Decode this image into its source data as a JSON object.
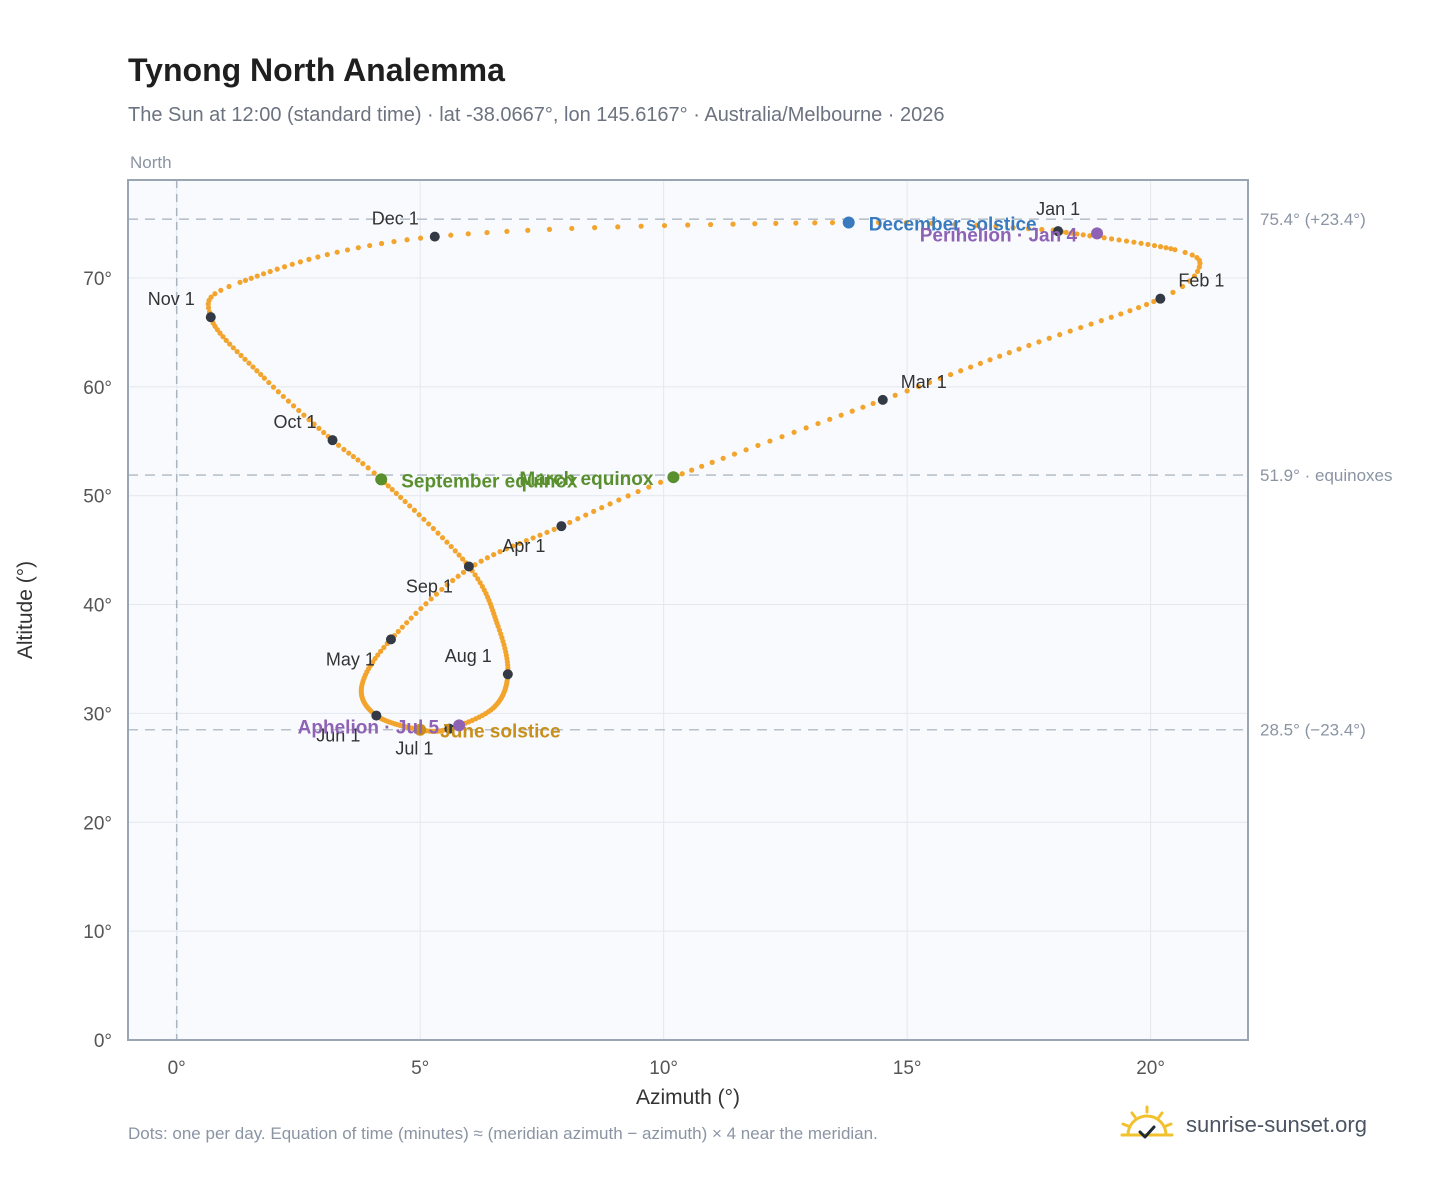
{
  "page": {
    "title": "Tynong North Analemma",
    "subtitle": "The Sun at 12:00 (standard time) · lat -38.0667°, lon 145.6167° · Australia/Melbourne · 2026",
    "footnote": "Dots: one per day. Equation of time (minutes) ≈ (meridian azimuth − azimuth) × 4 near the meridian.",
    "brand": "sunrise-sunset.org"
  },
  "chart_data": {
    "type": "scatter",
    "xlabel": "Azimuth (°)",
    "ylabel": "Altitude (°)",
    "xlim": [
      -1,
      22
    ],
    "ylim": [
      0,
      79
    ],
    "x_ticks": [
      0,
      5,
      10,
      15,
      20
    ],
    "x_tick_labels": [
      "0°",
      "5°",
      "10°",
      "15°",
      "20°"
    ],
    "y_ticks": [
      0,
      10,
      20,
      30,
      40,
      50,
      60,
      70
    ],
    "y_tick_labels": [
      "0°",
      "10°",
      "20°",
      "30°",
      "40°",
      "50°",
      "60°",
      "70°"
    ],
    "grid": true,
    "north_label": "North",
    "north_azimuth": 0,
    "reference_lines": [
      {
        "y": 75.4,
        "label": "75.4° (+23.4°)"
      },
      {
        "y": 51.9,
        "label": "51.9° · equinoxes"
      },
      {
        "y": 28.5,
        "label": "28.5° (−23.4°)"
      }
    ],
    "analemma_key_points": [
      {
        "date": "Jan 1",
        "az": 18.1,
        "alt": 74.3
      },
      {
        "date": "Jan 20",
        "az": 20.5,
        "alt": 72.6
      },
      {
        "date": "Jan 26",
        "az": 21.0,
        "alt": 71.0
      },
      {
        "date": "Feb 1",
        "az": 20.2,
        "alt": 68.1
      },
      {
        "date": "Feb 15",
        "az": 17.5,
        "alt": 63.8
      },
      {
        "date": "Mar 1",
        "az": 14.5,
        "alt": 58.8
      },
      {
        "date": "Mar 20",
        "az": 10.2,
        "alt": 51.7
      },
      {
        "date": "Apr 1",
        "az": 7.9,
        "alt": 47.2
      },
      {
        "date": "Apr 15",
        "az": 6.0,
        "alt": 43.3
      },
      {
        "date": "May 1",
        "az": 4.4,
        "alt": 36.8
      },
      {
        "date": "May 15",
        "az": 3.8,
        "alt": 32.5
      },
      {
        "date": "Jun 1",
        "az": 4.1,
        "alt": 29.8
      },
      {
        "date": "Jun 21",
        "az": 5.0,
        "alt": 28.5
      },
      {
        "date": "Jul 1",
        "az": 5.6,
        "alt": 28.6
      },
      {
        "date": "Jul 15",
        "az": 6.5,
        "alt": 30.5
      },
      {
        "date": "Aug 1",
        "az": 6.8,
        "alt": 33.6
      },
      {
        "date": "Aug 15",
        "az": 6.6,
        "alt": 38.0
      },
      {
        "date": "Sep 1",
        "az": 6.0,
        "alt": 43.5
      },
      {
        "date": "Sep 22",
        "az": 4.2,
        "alt": 51.5
      },
      {
        "date": "Oct 1",
        "az": 3.2,
        "alt": 55.1
      },
      {
        "date": "Oct 15",
        "az": 1.8,
        "alt": 60.8
      },
      {
        "date": "Nov 1",
        "az": 0.7,
        "alt": 66.4
      },
      {
        "date": "Nov 10",
        "az": 1.3,
        "alt": 69.6
      },
      {
        "date": "Dec 1",
        "az": 5.3,
        "alt": 73.8
      },
      {
        "date": "Dec 21",
        "az": 13.8,
        "alt": 75.1
      },
      {
        "date": "Dec 31",
        "az": 18.0,
        "alt": 74.4
      }
    ],
    "month_markers": [
      {
        "label": "Jan 1",
        "az": 18.1,
        "alt": 74.3,
        "pos": "above"
      },
      {
        "label": "Feb 1",
        "az": 20.2,
        "alt": 68.1,
        "pos": "right"
      },
      {
        "label": "Mar 1",
        "az": 14.5,
        "alt": 58.8,
        "pos": "above-right"
      },
      {
        "label": "Apr 1",
        "az": 7.9,
        "alt": 47.2,
        "pos": "below-left"
      },
      {
        "label": "May 1",
        "az": 4.4,
        "alt": 36.8,
        "pos": "below-left"
      },
      {
        "label": "Jun 1",
        "az": 4.1,
        "alt": 29.8,
        "pos": "below-left"
      },
      {
        "label": "Jul 1",
        "az": 5.6,
        "alt": 28.6,
        "pos": "below-left"
      },
      {
        "label": "Aug 1",
        "az": 6.8,
        "alt": 33.6,
        "pos": "above-left"
      },
      {
        "label": "Sep 1",
        "az": 6.0,
        "alt": 43.5,
        "pos": "below-left"
      },
      {
        "label": "Oct 1",
        "az": 3.2,
        "alt": 55.1,
        "pos": "above-left"
      },
      {
        "label": "Nov 1",
        "az": 0.7,
        "alt": 66.4,
        "pos": "above-left"
      },
      {
        "label": "Dec 1",
        "az": 5.3,
        "alt": 73.8,
        "pos": "above-left"
      }
    ],
    "events": [
      {
        "label": "December solstice",
        "az": 13.8,
        "alt": 75.1,
        "color": "#3a7bbf",
        "pos": "right"
      },
      {
        "label": "Perihelion · Jan 4",
        "az": 18.9,
        "alt": 74.1,
        "color": "#8e62b5",
        "pos": "left"
      },
      {
        "label": "March equinox",
        "az": 10.2,
        "alt": 51.7,
        "color": "#5a8f2e",
        "pos": "left"
      },
      {
        "label": "September equinox",
        "az": 4.2,
        "alt": 51.5,
        "color": "#5a8f2e",
        "pos": "right"
      },
      {
        "label": "June solstice",
        "az": 5.0,
        "alt": 28.5,
        "color": "#c88f1a",
        "pos": "right"
      },
      {
        "label": "Aphelion · Jul 5",
        "az": 5.8,
        "alt": 28.9,
        "color": "#8e62b5",
        "pos": "left"
      }
    ],
    "colors": {
      "path": "#f2a42c",
      "month_marker": "#333a45",
      "plot_background": "#f8fafd",
      "grid": "#e3e8ef",
      "frame": "#9aa5b4"
    }
  },
  "brand_icon": "sun-check-icon"
}
